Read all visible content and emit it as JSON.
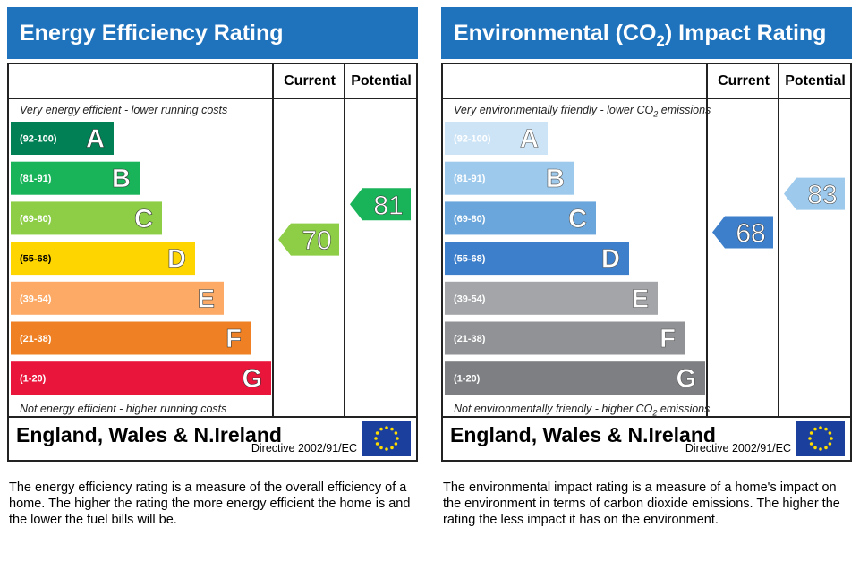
{
  "charts": [
    {
      "title": "Energy Efficiency Rating",
      "top_note": "Very energy efficient - lower running costs",
      "bottom_note": "Not energy efficient - higher running costs",
      "country": "England, Wales & N.Ireland",
      "directive": "Directive 2002/91/EC",
      "description": "The energy efficiency rating is a measure of the overall efficiency of a home. The higher the rating the more energy efficient the home is and the lower the fuel bills will be."
    },
    {
      "title_parts": [
        "Environmental (CO",
        "2",
        ") Impact Rating"
      ],
      "top_note_parts": [
        "Very environmentally friendly - lower CO",
        "2",
        " emissions"
      ],
      "bottom_note_parts": [
        "Not environmentally friendly - higher CO",
        "2",
        " emissions"
      ],
      "country": "England, Wales & N.Ireland",
      "directive": "Directive 2002/91/EC",
      "description": "The environmental impact rating is a measure of a home's impact on the environment in terms of carbon dioxide emissions. The higher the rating the less impact it has on the environment."
    }
  ],
  "chart_data": [
    {
      "type": "bar",
      "title": "Energy Efficiency Rating",
      "columns": [
        "Current",
        "Potential"
      ],
      "categories": [
        "A",
        "B",
        "C",
        "D",
        "E",
        "F",
        "G"
      ],
      "ranges": [
        "(92-100)",
        "(81-91)",
        "(69-80)",
        "(55-68)",
        "(39-54)",
        "(21-38)",
        "(1-20)"
      ],
      "band_min": [
        92,
        81,
        69,
        55,
        39,
        21,
        1
      ],
      "colors": [
        "#008054",
        "#19b459",
        "#8dce46",
        "#ffd500",
        "#fcaa65",
        "#ef8023",
        "#e9153b"
      ],
      "label_colors": [
        "#ffffff",
        "#ffffff",
        "#ffffff",
        "#000000",
        "#ffffff",
        "#ffffff",
        "#ffffff"
      ],
      "current": 70,
      "current_color": "#8dce46",
      "potential": 81,
      "potential_color": "#19b459"
    },
    {
      "type": "bar",
      "title": "Environmental (CO2) Impact Rating",
      "columns": [
        "Current",
        "Potential"
      ],
      "categories": [
        "A",
        "B",
        "C",
        "D",
        "E",
        "F",
        "G"
      ],
      "ranges": [
        "(92-100)",
        "(81-91)",
        "(69-80)",
        "(55-68)",
        "(39-54)",
        "(21-38)",
        "(1-20)"
      ],
      "band_min": [
        92,
        81,
        69,
        55,
        39,
        21,
        1
      ],
      "colors": [
        "#cde4f6",
        "#9dc9ec",
        "#6aa6db",
        "#3e7fcb",
        "#a3a5a8",
        "#909295",
        "#7d7f82"
      ],
      "label_colors": [
        "#ffffff",
        "#ffffff",
        "#ffffff",
        "#ffffff",
        "#ffffff",
        "#ffffff",
        "#ffffff"
      ],
      "current": 68,
      "current_color": "#3e7fcb",
      "potential": 83,
      "potential_color": "#9dc9ec"
    }
  ],
  "colors": {
    "title_bar": "#1f73bd",
    "eu_flag": "#1a3f9c",
    "eu_stars": "#ffdd00"
  }
}
